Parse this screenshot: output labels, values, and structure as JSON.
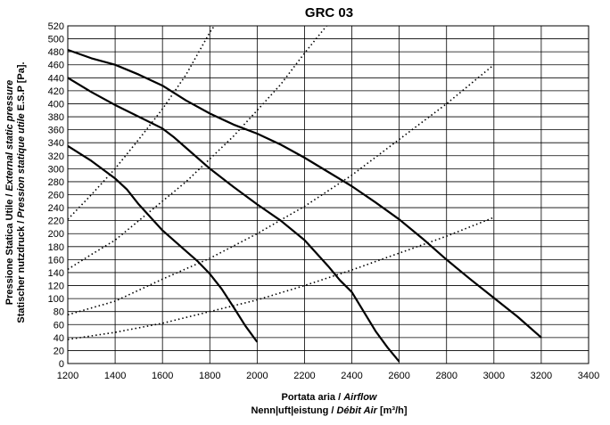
{
  "chart_data": {
    "type": "line",
    "title": "GRC 03",
    "xlabel_line1": [
      "Portata aria / ",
      "Airflow"
    ],
    "xlabel_line2": [
      "Nenn|uft|eistung / ",
      "Débit Air",
      "  [m³/h]"
    ],
    "ylabel_line1": [
      "Pressione Statica Utile / ",
      "External static pressure"
    ],
    "ylabel_line2": [
      "Statischer nutzdruck / ",
      "Pression statique utile",
      " E.S.P [Pa]."
    ],
    "xlim": [
      1200,
      3400
    ],
    "ylim": [
      0,
      520
    ],
    "xticks": [
      1200,
      1400,
      1600,
      1800,
      2000,
      2200,
      2400,
      2600,
      2800,
      3000,
      3200,
      3400
    ],
    "yticks": [
      0,
      20,
      40,
      60,
      80,
      100,
      120,
      140,
      160,
      180,
      200,
      220,
      240,
      260,
      280,
      300,
      320,
      340,
      360,
      380,
      400,
      420,
      440,
      460,
      480,
      500,
      520
    ],
    "grid": true,
    "series": [
      {
        "style": "solid",
        "points": [
          [
            1200,
            335
          ],
          [
            1300,
            312
          ],
          [
            1400,
            285
          ],
          [
            1450,
            268
          ],
          [
            1500,
            245
          ],
          [
            1600,
            205
          ],
          [
            1700,
            173
          ],
          [
            1750,
            157
          ],
          [
            1800,
            138
          ],
          [
            1850,
            115
          ],
          [
            1900,
            87
          ],
          [
            1950,
            58
          ],
          [
            2000,
            33
          ]
        ]
      },
      {
        "style": "solid",
        "points": [
          [
            1200,
            440
          ],
          [
            1300,
            418
          ],
          [
            1400,
            398
          ],
          [
            1500,
            380
          ],
          [
            1600,
            362
          ],
          [
            1650,
            348
          ],
          [
            1700,
            332
          ],
          [
            1800,
            300
          ],
          [
            1900,
            272
          ],
          [
            2000,
            245
          ],
          [
            2100,
            220
          ],
          [
            2200,
            190
          ],
          [
            2300,
            150
          ],
          [
            2350,
            128
          ],
          [
            2400,
            110
          ],
          [
            2450,
            80
          ],
          [
            2500,
            50
          ],
          [
            2550,
            25
          ],
          [
            2600,
            3
          ]
        ]
      },
      {
        "style": "solid",
        "points": [
          [
            1200,
            483
          ],
          [
            1300,
            470
          ],
          [
            1400,
            460
          ],
          [
            1500,
            445
          ],
          [
            1600,
            428
          ],
          [
            1700,
            405
          ],
          [
            1800,
            385
          ],
          [
            1900,
            368
          ],
          [
            2000,
            354
          ],
          [
            2100,
            337
          ],
          [
            2200,
            317
          ],
          [
            2300,
            295
          ],
          [
            2400,
            273
          ],
          [
            2500,
            248
          ],
          [
            2600,
            222
          ],
          [
            2700,
            192
          ],
          [
            2800,
            160
          ],
          [
            2900,
            130
          ],
          [
            3000,
            101
          ],
          [
            3100,
            72
          ],
          [
            3200,
            40
          ]
        ]
      },
      {
        "style": "dotted",
        "points": [
          [
            1200,
            222
          ],
          [
            1300,
            260
          ],
          [
            1400,
            300
          ],
          [
            1500,
            345
          ],
          [
            1600,
            392
          ],
          [
            1700,
            445
          ],
          [
            1800,
            510
          ],
          [
            1825,
            523
          ]
        ]
      },
      {
        "style": "dotted",
        "points": [
          [
            1200,
            145
          ],
          [
            1300,
            168
          ],
          [
            1400,
            190
          ],
          [
            1500,
            220
          ],
          [
            1600,
            250
          ],
          [
            1700,
            280
          ],
          [
            1800,
            315
          ],
          [
            1900,
            350
          ],
          [
            2000,
            390
          ],
          [
            2100,
            430
          ],
          [
            2200,
            478
          ],
          [
            2300,
            523
          ]
        ]
      },
      {
        "style": "dotted",
        "points": [
          [
            1200,
            75
          ],
          [
            1400,
            96
          ],
          [
            1600,
            130
          ],
          [
            1800,
            162
          ],
          [
            2000,
            200
          ],
          [
            2200,
            242
          ],
          [
            2400,
            290
          ],
          [
            2600,
            345
          ],
          [
            2800,
            400
          ],
          [
            3000,
            460
          ]
        ]
      },
      {
        "style": "dotted",
        "points": [
          [
            1200,
            37
          ],
          [
            1400,
            48
          ],
          [
            1600,
            62
          ],
          [
            1800,
            80
          ],
          [
            2000,
            98
          ],
          [
            2200,
            120
          ],
          [
            2400,
            144
          ],
          [
            2600,
            170
          ],
          [
            2800,
            196
          ],
          [
            3000,
            225
          ]
        ]
      }
    ]
  }
}
